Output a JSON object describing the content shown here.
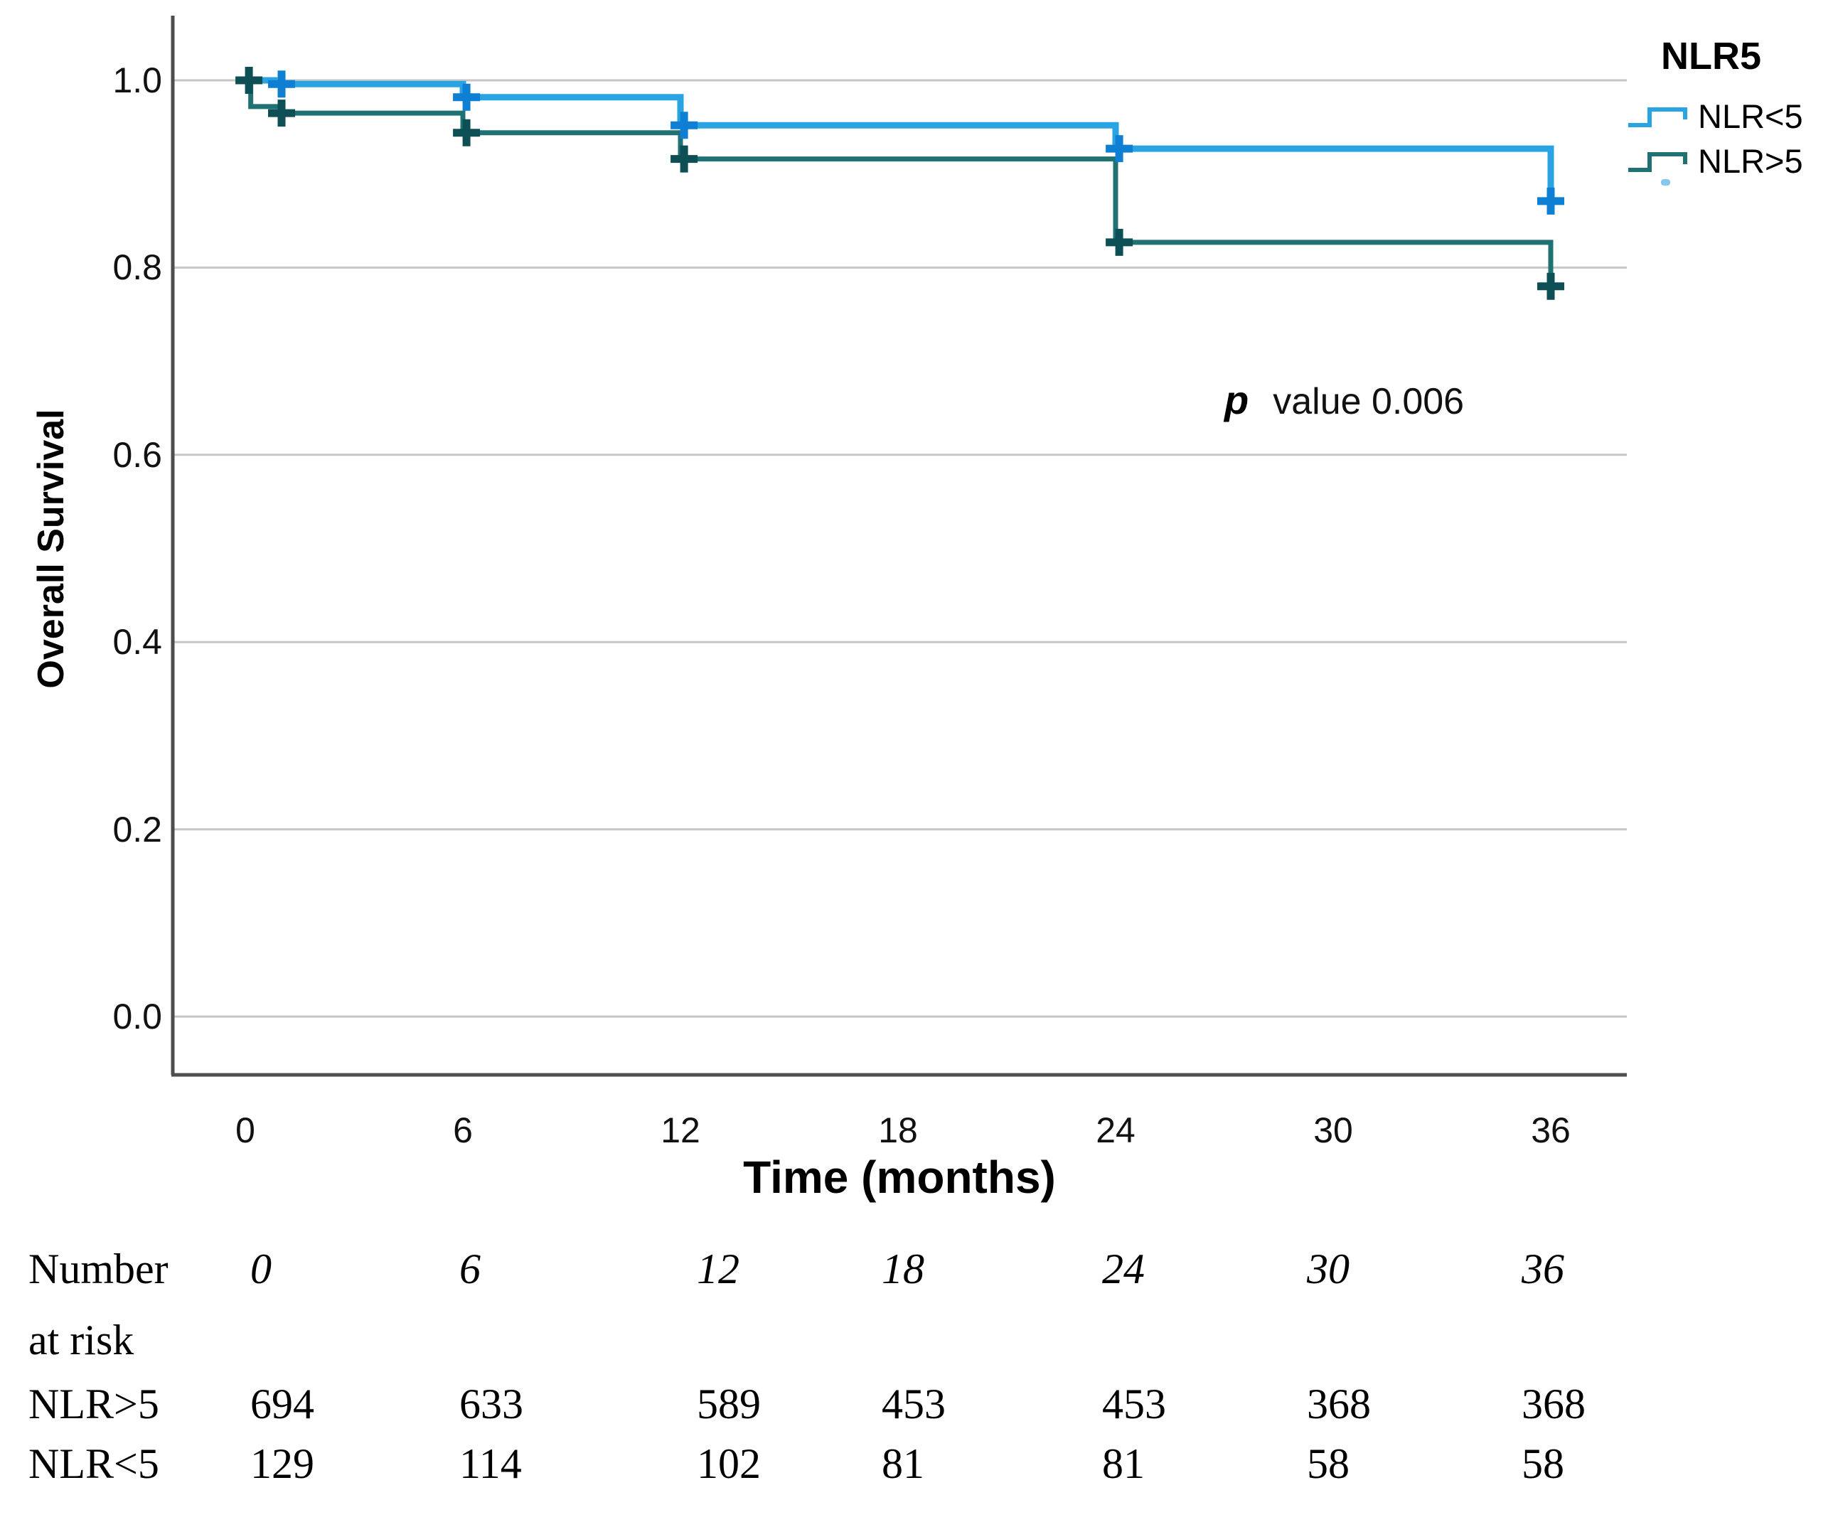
{
  "chart_data": {
    "type": "line",
    "subtype": "kaplan-meier-step",
    "xlabel": "Time (months)",
    "ylabel": "Overall Survival",
    "x_ticks": [
      "0",
      "6",
      "12",
      "18",
      "24",
      "30",
      "36"
    ],
    "y_ticks": [
      "0.0",
      "0.2",
      "0.4",
      "0.6",
      "0.8",
      "1.0"
    ],
    "xlim": [
      -2,
      38.5
    ],
    "ylim": [
      -0.06,
      1.07
    ],
    "grid": "horizontal-only",
    "legend_position": "top-right",
    "annotation": {
      "symbol": "p",
      "text": "value 0.006"
    },
    "legend": {
      "title": "NLR5",
      "entries": [
        {
          "label": "NLR<5",
          "color": "#29a3e2"
        },
        {
          "label": "NLR>5",
          "color": "#1f7173"
        }
      ]
    },
    "series": [
      {
        "name": "NLR<5",
        "color": "#29a3e2",
        "censor_color": "#0e7fd2",
        "line_width": 9,
        "steps": [
          [
            0,
            1.0
          ],
          [
            0.8,
            0.996
          ],
          [
            6,
            0.982
          ],
          [
            12,
            0.952
          ],
          [
            24,
            0.927
          ],
          [
            36,
            0.871
          ]
        ],
        "censors": [
          [
            1.0,
            0.996
          ],
          [
            6.1,
            0.982
          ],
          [
            12.1,
            0.952
          ],
          [
            24.1,
            0.927
          ],
          [
            36,
            0.871
          ]
        ]
      },
      {
        "name": "NLR>5",
        "color": "#1f7173",
        "censor_color": "#0d4f55",
        "line_width": 7,
        "steps": [
          [
            0,
            1.0
          ],
          [
            0.15,
            0.972
          ],
          [
            1.0,
            0.965
          ],
          [
            6,
            0.944
          ],
          [
            12,
            0.916
          ],
          [
            24,
            0.827
          ],
          [
            36,
            0.78
          ]
        ],
        "censors": [
          [
            0.1,
            1.0
          ],
          [
            1.0,
            0.965
          ],
          [
            6.1,
            0.944
          ],
          [
            12.1,
            0.916
          ],
          [
            24.1,
            0.827
          ],
          [
            36,
            0.78
          ]
        ]
      }
    ],
    "colors": {
      "gridline": "#c6c6c6",
      "axis": "#4d4d4d"
    }
  },
  "risk_table": {
    "row_label_line1": "Number",
    "row_label_line2": "at risk",
    "time_points": [
      "0",
      "6",
      "12",
      "18",
      "24",
      "30",
      "36"
    ],
    "rows": [
      {
        "label": "NLR>5",
        "values": [
          "694",
          "633",
          "589",
          "453",
          "453",
          "368",
          "368"
        ]
      },
      {
        "label": "NLR<5",
        "values": [
          "129",
          "114",
          "102",
          "81",
          "81",
          "58",
          "58"
        ]
      }
    ]
  }
}
